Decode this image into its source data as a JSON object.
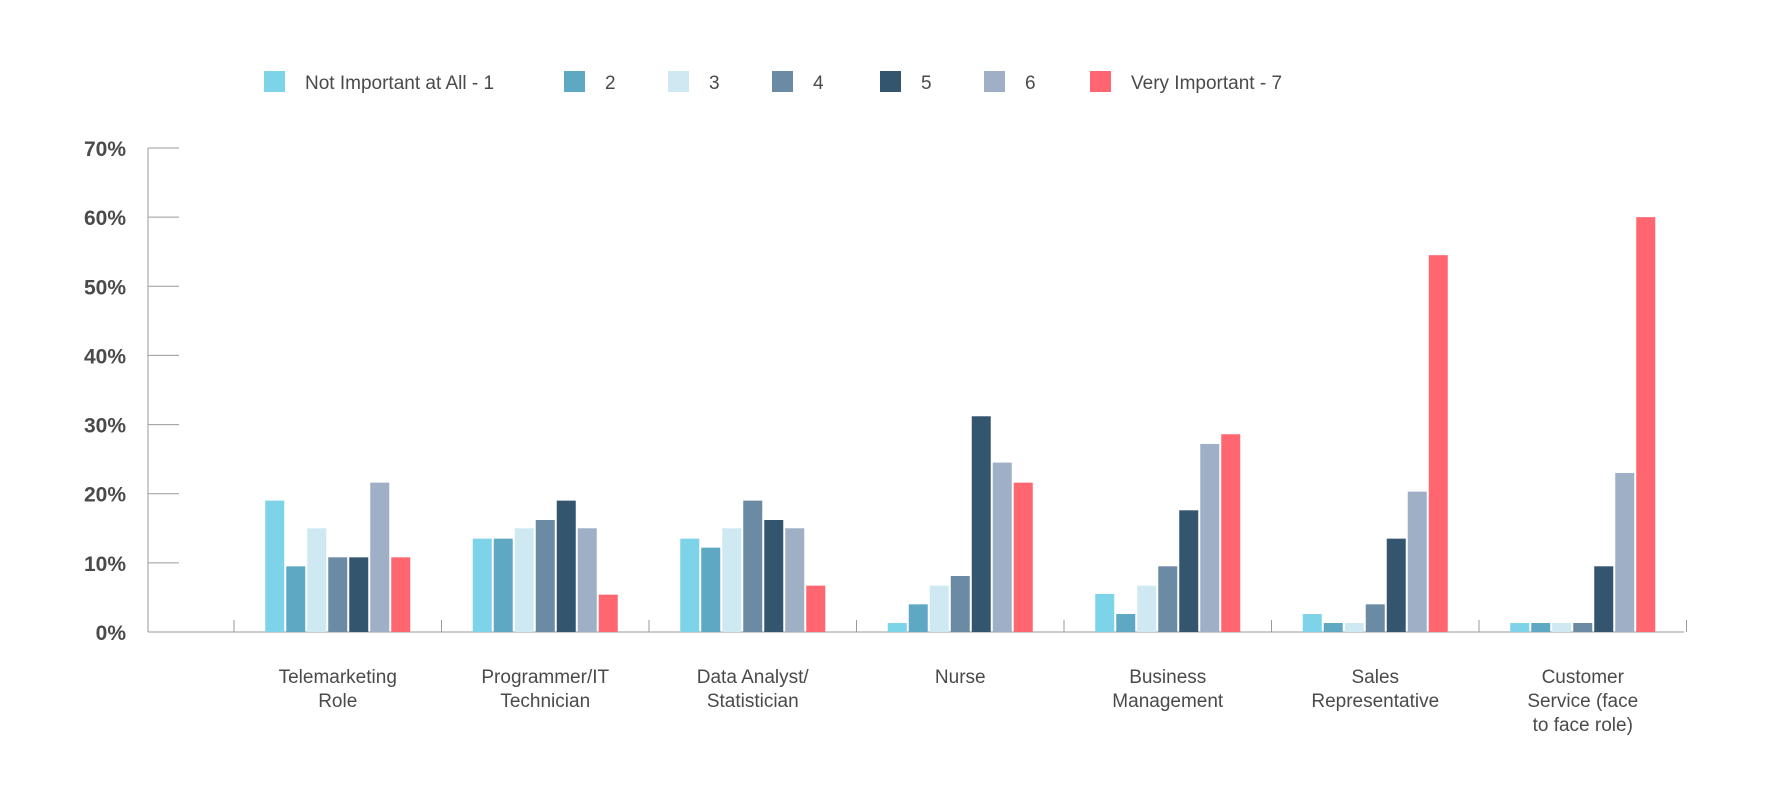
{
  "chart_data": {
    "type": "bar",
    "title": "",
    "xlabel": "",
    "ylabel": "",
    "ylim": [
      0,
      70
    ],
    "y_ticks": [
      0,
      10,
      20,
      30,
      40,
      50,
      60,
      70
    ],
    "y_tick_format": "%",
    "grid": false,
    "legend_position": "top",
    "categories": [
      [
        "Telemarketing",
        "Role"
      ],
      [
        "Programmer/IT",
        "Technician"
      ],
      [
        "Data Analyst/",
        "Statistician"
      ],
      [
        "Nurse"
      ],
      [
        "Business",
        "Management"
      ],
      [
        "Sales",
        "Representative"
      ],
      [
        "Customer",
        "Service (face",
        "to face role)"
      ]
    ],
    "series": [
      {
        "name": "Not Important at All - 1",
        "color": "#7dd3e8",
        "values": [
          19,
          13.5,
          13.5,
          1.3,
          5.5,
          2.6,
          1.3
        ]
      },
      {
        "name": "2",
        "color": "#5ea8c4",
        "values": [
          9.5,
          13.5,
          12.2,
          4,
          2.6,
          1.3,
          1.3
        ]
      },
      {
        "name": "3",
        "color": "#cfe9f3",
        "values": [
          15,
          15,
          15,
          6.7,
          6.7,
          1.3,
          1.3
        ]
      },
      {
        "name": "4",
        "color": "#6b8aa3",
        "values": [
          10.8,
          16.2,
          19,
          8.1,
          9.5,
          4,
          1.3
        ]
      },
      {
        "name": "5",
        "color": "#34556e",
        "values": [
          10.8,
          19,
          16.2,
          31.2,
          17.6,
          13.5,
          9.5
        ]
      },
      {
        "name": "6",
        "color": "#9eafc6",
        "values": [
          21.6,
          15,
          15,
          24.5,
          27.2,
          20.3,
          23
        ]
      },
      {
        "name": "Very Important - 7",
        "color": "#ff6670",
        "values": [
          10.8,
          5.4,
          6.7,
          21.6,
          28.6,
          54.5,
          60
        ]
      }
    ]
  }
}
